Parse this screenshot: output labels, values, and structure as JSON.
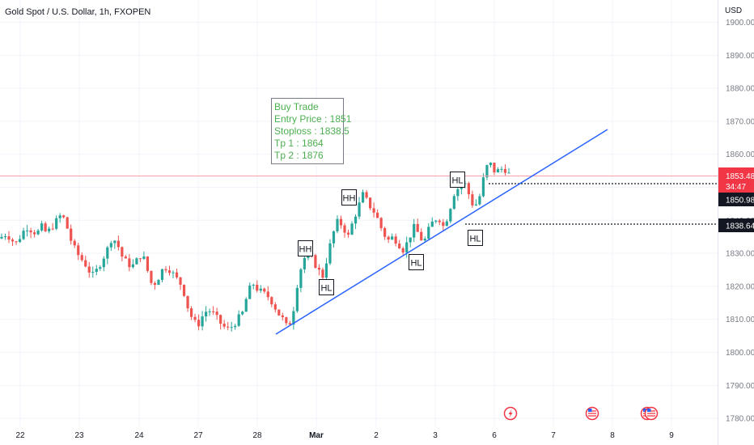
{
  "header": {
    "title": "Gold Spot / U.S. Dollar, 1h, FXOPEN"
  },
  "price_axis": {
    "unit": "USD",
    "ticks": [
      "1900.00",
      "1890.00",
      "1880.00",
      "1870.00",
      "1860.00",
      "1850.00",
      "1840.00",
      "1830.00",
      "1820.00",
      "1810.00",
      "1800.00",
      "1790.00",
      "1780.00"
    ]
  },
  "time_axis": {
    "ticks": [
      "22",
      "23",
      "24",
      "27",
      "28",
      "Mar",
      "2",
      "3",
      "6",
      "7",
      "8",
      "9"
    ]
  },
  "price_labels": {
    "current_price": "1853.48",
    "countdown": "34:47",
    "line_1": "1850.98",
    "line_2": "1838.64"
  },
  "annotation": {
    "lines": [
      "Buy Trade",
      "Entry Price : 1851",
      "Stoploss : 1838.5",
      "Tp 1 : 1864",
      "Tp 2 : 1876"
    ]
  },
  "markers": [
    {
      "label": "HH"
    },
    {
      "label": "HL"
    },
    {
      "label": "HH"
    },
    {
      "label": "HL"
    },
    {
      "label": "HL"
    },
    {
      "label": "HL"
    }
  ],
  "colors": {
    "bull": "#26a69a",
    "bear": "#ef5350",
    "trendline": "#2962ff",
    "annotation_text": "#4caf50",
    "current_price_bg": "#f23645",
    "grid": "#f0f3fa"
  },
  "chart_data": {
    "type": "candlestick",
    "title": "Gold Spot / U.S. Dollar, 1h, FXOPEN",
    "ylabel": "USD",
    "ylim": [
      1777,
      1903
    ],
    "close_path": [
      1835,
      1836,
      1834,
      1833,
      1836,
      1838,
      1837,
      1836,
      1838,
      1836,
      1838,
      1840,
      1842,
      1838,
      1833,
      1830,
      1828,
      1826,
      1823,
      1825,
      1828,
      1831,
      1835,
      1833,
      1829,
      1827,
      1826,
      1828,
      1830,
      1825,
      1820,
      1822,
      1825,
      1826,
      1824,
      1822,
      1820,
      1814,
      1810,
      1808,
      1811,
      1813,
      1812,
      1810,
      1808,
      1807,
      1808,
      1810,
      1812,
      1818,
      1821,
      1819,
      1818,
      1817,
      1815,
      1812,
      1810,
      1807,
      1812,
      1822,
      1828,
      1830,
      1828,
      1825,
      1823,
      1830,
      1836,
      1840,
      1838,
      1835,
      1840,
      1844,
      1848,
      1845,
      1843,
      1840,
      1836,
      1834,
      1835,
      1833,
      1831,
      1834,
      1838,
      1836,
      1833,
      1837,
      1840,
      1841,
      1838,
      1842,
      1848,
      1850,
      1852,
      1848,
      1844,
      1846,
      1853,
      1858,
      1855,
      1855,
      1856,
      1854
    ],
    "trendline": [
      {
        "day": "28",
        "price": 1804.5
      },
      {
        "day": "8",
        "price": 1867
      }
    ]
  }
}
